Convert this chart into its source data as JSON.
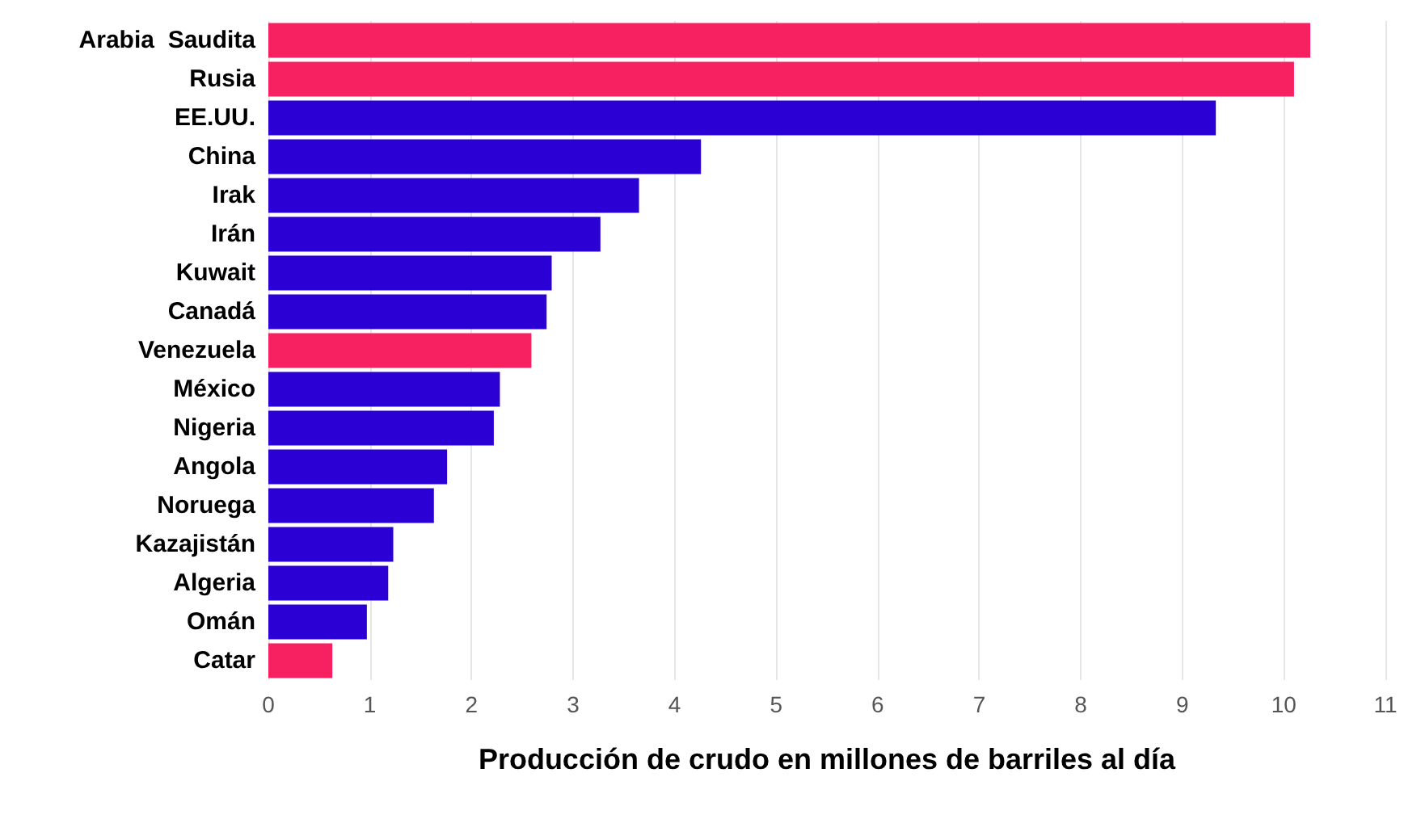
{
  "chart_data": {
    "type": "bar",
    "orientation": "horizontal",
    "xlabel": "Producción de crudo en millones de barriles al día",
    "categories": [
      "Arabia  Saudita",
      "Rusia",
      "EE.UU.",
      "China",
      "Irak",
      "Irán",
      "Kuwait",
      "Canadá",
      "Venezuela",
      "México",
      "Nigeria",
      "Angola",
      "Noruega",
      "Kazajistán",
      "Algeria",
      "Omán",
      "Catar"
    ],
    "values": [
      10.26,
      10.1,
      9.33,
      4.26,
      3.65,
      3.27,
      2.79,
      2.74,
      2.59,
      2.28,
      2.22,
      1.76,
      1.63,
      1.23,
      1.18,
      0.97,
      0.63
    ],
    "colors": [
      "#f72060",
      "#f72060",
      "#2a00d4",
      "#2a00d4",
      "#2a00d4",
      "#2a00d4",
      "#2a00d4",
      "#2a00d4",
      "#f72060",
      "#2a00d4",
      "#2a00d4",
      "#2a00d4",
      "#2a00d4",
      "#2a00d4",
      "#2a00d4",
      "#2a00d4",
      "#f72060"
    ],
    "xlim": [
      0,
      11
    ],
    "xticks": [
      0,
      1,
      2,
      3,
      4,
      5,
      6,
      7,
      8,
      9,
      10,
      11
    ],
    "grid": "x"
  }
}
